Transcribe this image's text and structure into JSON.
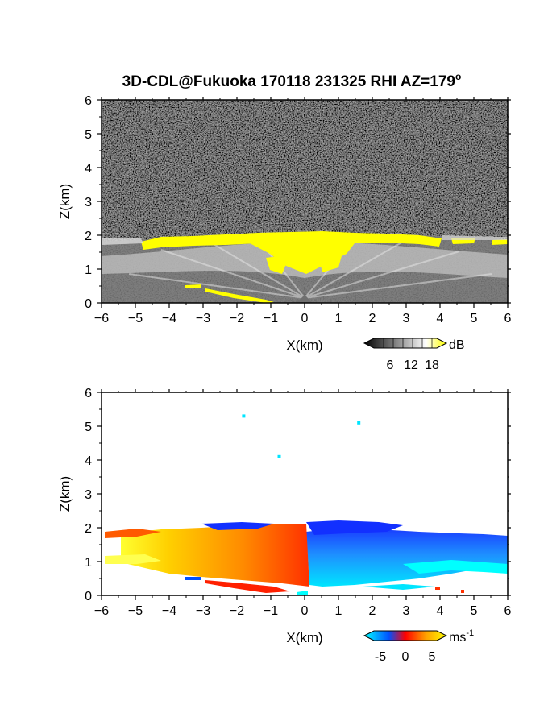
{
  "chart_data": [
    {
      "type": "heatmap",
      "title": "3D-CDL@Fukuoka 170118 231325 RHI AZ=179",
      "title_superscript": "o",
      "xlabel": "X(km)",
      "ylabel": "Z(km)",
      "xlim": [
        -6,
        6
      ],
      "ylim": [
        0,
        6
      ],
      "x_ticks": [
        "-6",
        "-5",
        "-4",
        "-3",
        "-2",
        "-1",
        "0",
        "1",
        "2",
        "3",
        "4",
        "5",
        "6"
      ],
      "y_ticks": [
        "0",
        "1",
        "2",
        "3",
        "4",
        "5",
        "6"
      ],
      "colorbar": {
        "unit": "dB",
        "ticks": [
          "6",
          "12",
          "18"
        ],
        "range": [
          0,
          21
        ],
        "colors": [
          "#000000",
          "#ffffff",
          "#ffff00"
        ]
      },
      "features": {
        "layer_top_km": 1.9,
        "strong_echo_top_km": [
          1.6,
          2.1
        ],
        "strong_echo_extent_km": [
          -4.8,
          6.0
        ],
        "background": "noise"
      }
    },
    {
      "type": "heatmap",
      "xlabel": "X(km)",
      "ylabel": "Z(km)",
      "xlim": [
        -6,
        6
      ],
      "ylim": [
        0,
        6
      ],
      "x_ticks": [
        "-6",
        "-5",
        "-4",
        "-3",
        "-2",
        "-1",
        "0",
        "1",
        "2",
        "3",
        "4",
        "5",
        "6"
      ],
      "y_ticks": [
        "0",
        "1",
        "2",
        "3",
        "4",
        "5",
        "6"
      ],
      "colorbar": {
        "unit": "ms",
        "unit_superscript": "-1",
        "ticks": [
          "-5",
          "0",
          "5"
        ],
        "range": [
          -7,
          7
        ],
        "colors": [
          "#00ffff",
          "#0050ff",
          "#ff0000",
          "#ffa000",
          "#ffff00"
        ]
      },
      "features": {
        "negative_side": "x > 0 (blue/cyan)",
        "positive_side": "x < 0 (red/orange/yellow)",
        "layer_top_km": 1.9,
        "isolated_points": [
          {
            "x": -1.8,
            "z": 5.3
          },
          {
            "x": 1.6,
            "z": 5.1
          },
          {
            "x": -0.75,
            "z": 4.1
          }
        ]
      }
    }
  ]
}
